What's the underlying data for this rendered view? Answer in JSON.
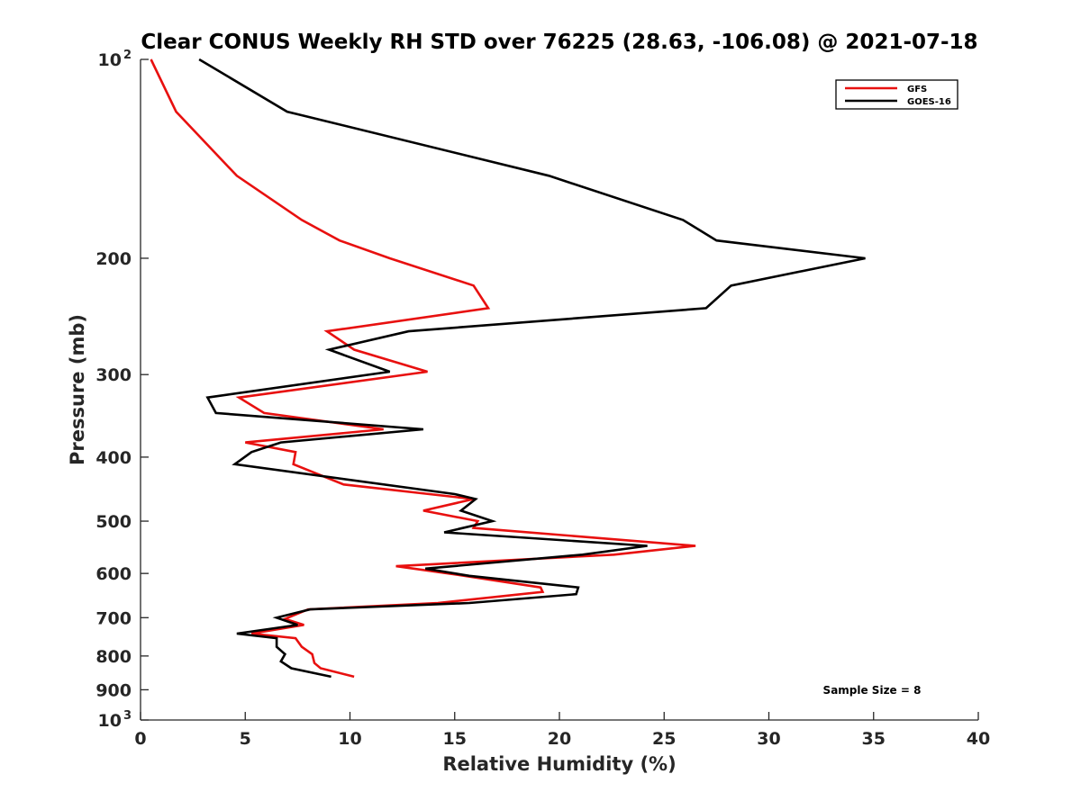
{
  "chart_data": {
    "type": "line",
    "title": "Clear CONUS Weekly RH STD over 76225 (28.63, -106.08) @ 2021-07-18",
    "xlabel": "Relative Humidity (%)",
    "ylabel": "Pressure (mb)",
    "xlim": [
      0,
      40
    ],
    "ylim": [
      100,
      1000
    ],
    "y_scale": "log",
    "y_reversed": true,
    "grid": false,
    "x_ticks": [
      "0",
      "5",
      "10",
      "15",
      "20",
      "25",
      "30",
      "35",
      "40"
    ],
    "x_tick_values": [
      0,
      5,
      10,
      15,
      20,
      25,
      30,
      35,
      40
    ],
    "y_tick_values": [
      100,
      200,
      300,
      400,
      500,
      600,
      700,
      800,
      900,
      1000
    ],
    "y_ticks": [
      {
        "value": 100,
        "base": "10",
        "exp": "2"
      },
      {
        "value": 200,
        "base": "200",
        "exp": ""
      },
      {
        "value": 300,
        "base": "300",
        "exp": ""
      },
      {
        "value": 400,
        "base": "400",
        "exp": ""
      },
      {
        "value": 500,
        "base": "500",
        "exp": ""
      },
      {
        "value": 600,
        "base": "600",
        "exp": ""
      },
      {
        "value": 700,
        "base": "700",
        "exp": ""
      },
      {
        "value": 800,
        "base": "800",
        "exp": ""
      },
      {
        "value": 900,
        "base": "900",
        "exp": ""
      },
      {
        "value": 1000,
        "base": "10",
        "exp": "3"
      }
    ],
    "legend": {
      "placement": "top-right"
    },
    "annotation": "Sample Size = 8",
    "series": [
      {
        "name": "GFS",
        "color": "#e8100f",
        "points": [
          [
            0.5,
            100
          ],
          [
            1.7,
            120
          ],
          [
            4.6,
            150
          ],
          [
            7.7,
            175
          ],
          [
            9.5,
            188
          ],
          [
            11.9,
            200
          ],
          [
            15.9,
            220
          ],
          [
            16.6,
            238
          ],
          [
            8.9,
            258
          ],
          [
            10.2,
            275
          ],
          [
            13.7,
            297
          ],
          [
            4.7,
            325
          ],
          [
            5.9,
            343
          ],
          [
            11.6,
            363
          ],
          [
            5.0,
            380
          ],
          [
            7.4,
            393
          ],
          [
            7.3,
            410
          ],
          [
            9.7,
            440
          ],
          [
            15.9,
            463
          ],
          [
            13.5,
            482
          ],
          [
            16.1,
            500
          ],
          [
            15.9,
            512
          ],
          [
            26.5,
            545
          ],
          [
            22.6,
            562
          ],
          [
            12.2,
            585
          ],
          [
            15.0,
            602
          ],
          [
            19.1,
            630
          ],
          [
            19.2,
            640
          ],
          [
            14.2,
            665
          ],
          [
            8.0,
            680
          ],
          [
            6.9,
            703
          ],
          [
            7.8,
            718
          ],
          [
            5.3,
            740
          ],
          [
            7.4,
            752
          ],
          [
            7.7,
            775
          ],
          [
            8.2,
            795
          ],
          [
            8.3,
            820
          ],
          [
            8.6,
            835
          ],
          [
            10.2,
            860
          ]
        ]
      },
      {
        "name": "GOES-16",
        "color": "#000000",
        "points": [
          [
            2.8,
            100
          ],
          [
            7.0,
            120
          ],
          [
            19.5,
            150
          ],
          [
            25.9,
            175
          ],
          [
            27.5,
            188
          ],
          [
            34.6,
            200
          ],
          [
            28.2,
            220
          ],
          [
            27.0,
            238
          ],
          [
            12.8,
            258
          ],
          [
            9.0,
            275
          ],
          [
            11.9,
            297
          ],
          [
            3.2,
            325
          ],
          [
            3.6,
            343
          ],
          [
            13.5,
            363
          ],
          [
            6.7,
            380
          ],
          [
            5.3,
            393
          ],
          [
            4.5,
            410
          ],
          [
            15.0,
            455
          ],
          [
            16.0,
            463
          ],
          [
            15.3,
            482
          ],
          [
            16.8,
            500
          ],
          [
            14.5,
            520
          ],
          [
            24.2,
            545
          ],
          [
            21.1,
            562
          ],
          [
            13.6,
            590
          ],
          [
            15.7,
            605
          ],
          [
            20.9,
            630
          ],
          [
            20.8,
            645
          ],
          [
            15.7,
            665
          ],
          [
            8.1,
            680
          ],
          [
            6.5,
            700
          ],
          [
            7.5,
            718
          ],
          [
            4.6,
            740
          ],
          [
            6.5,
            752
          ],
          [
            6.5,
            775
          ],
          [
            6.9,
            795
          ],
          [
            6.7,
            815
          ],
          [
            7.2,
            835
          ],
          [
            9.1,
            860
          ]
        ]
      }
    ]
  }
}
